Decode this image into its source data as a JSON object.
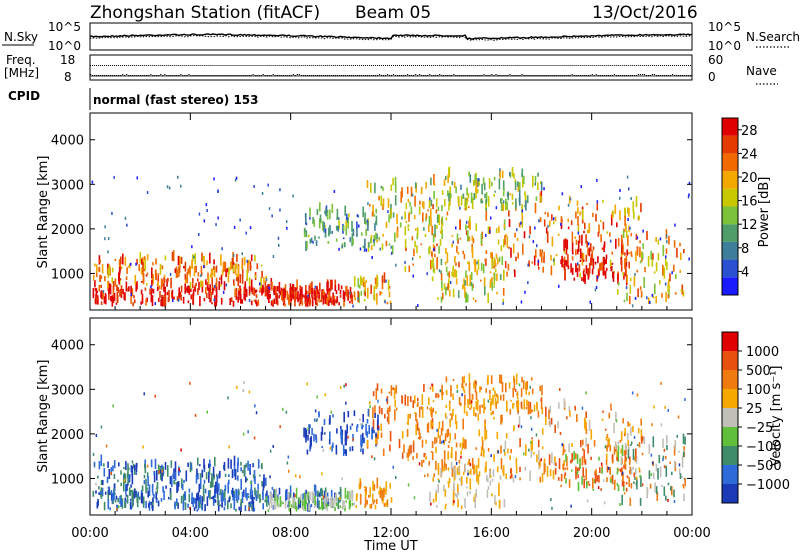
{
  "chart_data": [
    {
      "type": "line",
      "panel": "header",
      "title": "Zhongshan Station (fitACF)",
      "beam": "Beam 05",
      "date": "13/Oct/2016",
      "left_axis": {
        "label": "N.Sky",
        "ticks": [
          "10^5",
          "10^0"
        ]
      },
      "right_axis": {
        "label": "N.Search",
        "ticks": [
          "10^5",
          "10^0"
        ]
      },
      "series": [
        {
          "name": "N.Sky",
          "style": "solid"
        },
        {
          "name": "N.Search",
          "style": "dotted"
        }
      ]
    },
    {
      "type": "line",
      "panel": "frequency",
      "left_axis": {
        "label_lines": [
          "Freq.",
          "[MHz]"
        ],
        "ticks": [
          "18",
          "8"
        ],
        "ylim": [
          8,
          18
        ]
      },
      "right_axis": {
        "label": "Nave",
        "ticks": [
          "60",
          "0"
        ],
        "ylim": [
          0,
          60
        ]
      },
      "cpid_label": "CPID",
      "cpid_text": "normal (fast stereo) 153"
    },
    {
      "type": "heatmap",
      "panel": "power",
      "xlabel": "",
      "ylabel": "Slant Range [km]",
      "y_ticks": [
        "1000",
        "2000",
        "3000",
        "4000"
      ],
      "ylim": [
        180,
        4600
      ],
      "x_ticks": [
        "00:00",
        "04:00",
        "08:00",
        "12:00",
        "16:00",
        "20:00",
        "00:00"
      ],
      "xlim_hours": [
        0,
        24
      ],
      "colorbar": {
        "label": "Power [dB]",
        "ticks": [
          "4",
          "8",
          "12",
          "16",
          "20",
          "24",
          "28"
        ],
        "range": [
          0,
          30
        ],
        "colors": [
          "#1a1aff",
          "#2a4fd0",
          "#3f7e9a",
          "#4f9e6a",
          "#7cc23a",
          "#c8c800",
          "#f3a800",
          "#f06a00",
          "#e53a00",
          "#e00000"
        ]
      }
    },
    {
      "type": "heatmap",
      "panel": "velocity",
      "xlabel": "Time UT",
      "ylabel": "Slant Range [km]",
      "y_ticks": [
        "1000",
        "2000",
        "3000",
        "4000"
      ],
      "ylim": [
        180,
        4600
      ],
      "x_ticks": [
        "00:00",
        "04:00",
        "08:00",
        "12:00",
        "16:00",
        "20:00",
        "00:00"
      ],
      "xlim_hours": [
        0,
        24
      ],
      "colorbar": {
        "label": "Velocity [m s⁻¹]",
        "ticks": [
          "1000",
          "500",
          "100",
          "25",
          "−25",
          "−100",
          "−500",
          "−1000"
        ],
        "colors": [
          "#1a3ab8",
          "#2f6bd8",
          "#3f8c6a",
          "#5fbf3a",
          "#c0c0b8",
          "#f5a800",
          "#f07a10",
          "#e85010",
          "#e00000"
        ]
      }
    }
  ]
}
